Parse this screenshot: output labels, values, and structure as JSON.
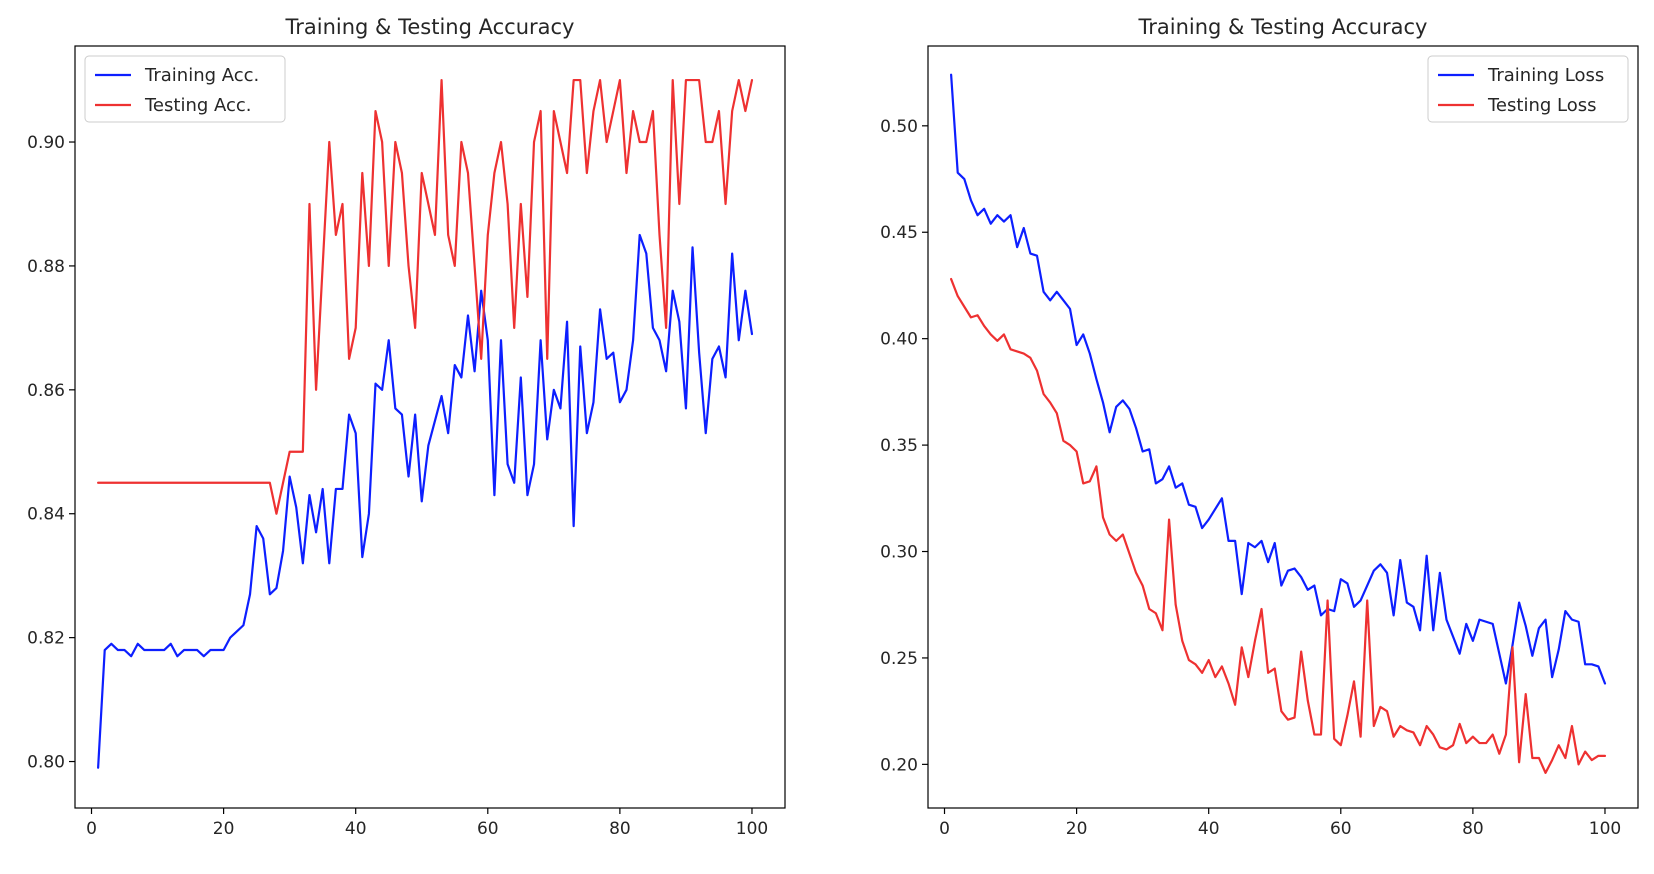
{
  "chart_data": [
    {
      "type": "line",
      "title": "Training & Testing Accuracy",
      "xlabel": "",
      "ylabel": "",
      "xlim": [
        -2.5,
        105
      ],
      "ylim": [
        0.7925,
        0.9155
      ],
      "xticks": [
        0,
        20,
        40,
        60,
        80,
        100
      ],
      "yticks": [
        0.8,
        0.82,
        0.84,
        0.86,
        0.88,
        0.9
      ],
      "ytick_labels": [
        "0.80",
        "0.82",
        "0.84",
        "0.86",
        "0.88",
        "0.90"
      ],
      "legend": "upper-left",
      "grid": false,
      "x": [
        1,
        2,
        3,
        4,
        5,
        6,
        7,
        8,
        9,
        10,
        11,
        12,
        13,
        14,
        15,
        16,
        17,
        18,
        19,
        20,
        21,
        22,
        23,
        24,
        25,
        26,
        27,
        28,
        29,
        30,
        31,
        32,
        33,
        34,
        35,
        36,
        37,
        38,
        39,
        40,
        41,
        42,
        43,
        44,
        45,
        46,
        47,
        48,
        49,
        50,
        51,
        52,
        53,
        54,
        55,
        56,
        57,
        58,
        59,
        60,
        61,
        62,
        63,
        64,
        65,
        66,
        67,
        68,
        69,
        70,
        71,
        72,
        73,
        74,
        75,
        76,
        77,
        78,
        79,
        80,
        81,
        82,
        83,
        84,
        85,
        86,
        87,
        88,
        89,
        90,
        91,
        92,
        93,
        94,
        95,
        96,
        97,
        98,
        99,
        100
      ],
      "series": [
        {
          "name": "Training Acc.",
          "color": "#0d1fff",
          "values": [
            0.799,
            0.818,
            0.819,
            0.818,
            0.818,
            0.817,
            0.819,
            0.818,
            0.818,
            0.818,
            0.818,
            0.819,
            0.817,
            0.818,
            0.818,
            0.818,
            0.817,
            0.818,
            0.818,
            0.818,
            0.82,
            0.821,
            0.822,
            0.827,
            0.838,
            0.836,
            0.827,
            0.828,
            0.834,
            0.846,
            0.841,
            0.832,
            0.843,
            0.837,
            0.844,
            0.832,
            0.844,
            0.844,
            0.856,
            0.853,
            0.833,
            0.84,
            0.861,
            0.86,
            0.868,
            0.857,
            0.856,
            0.846,
            0.856,
            0.842,
            0.851,
            0.855,
            0.859,
            0.853,
            0.864,
            0.862,
            0.872,
            0.863,
            0.876,
            0.868,
            0.843,
            0.868,
            0.848,
            0.845,
            0.862,
            0.843,
            0.848,
            0.868,
            0.852,
            0.86,
            0.857,
            0.871,
            0.838,
            0.867,
            0.853,
            0.858,
            0.873,
            0.865,
            0.866,
            0.858,
            0.86,
            0.868,
            0.885,
            0.882,
            0.87,
            0.868,
            0.863,
            0.876,
            0.871,
            0.857,
            0.883,
            0.866,
            0.853,
            0.865,
            0.867,
            0.862,
            0.882,
            0.868,
            0.876,
            0.869
          ]
        },
        {
          "name": "Testing Acc.",
          "color": "#ee3131",
          "values": [
            0.845,
            0.845,
            0.845,
            0.845,
            0.845,
            0.845,
            0.845,
            0.845,
            0.845,
            0.845,
            0.845,
            0.845,
            0.845,
            0.845,
            0.845,
            0.845,
            0.845,
            0.845,
            0.845,
            0.845,
            0.845,
            0.845,
            0.845,
            0.845,
            0.845,
            0.845,
            0.845,
            0.84,
            0.845,
            0.85,
            0.85,
            0.85,
            0.89,
            0.86,
            0.88,
            0.9,
            0.885,
            0.89,
            0.865,
            0.87,
            0.895,
            0.88,
            0.905,
            0.9,
            0.88,
            0.9,
            0.895,
            0.88,
            0.87,
            0.895,
            0.89,
            0.885,
            0.91,
            0.885,
            0.88,
            0.9,
            0.895,
            0.88,
            0.865,
            0.885,
            0.895,
            0.9,
            0.89,
            0.87,
            0.89,
            0.875,
            0.9,
            0.905,
            0.865,
            0.905,
            0.9,
            0.895,
            0.91,
            0.91,
            0.895,
            0.905,
            0.91,
            0.9,
            0.905,
            0.91,
            0.895,
            0.905,
            0.9,
            0.9,
            0.905,
            0.885,
            0.87,
            0.91,
            0.89,
            0.91,
            0.91,
            0.91,
            0.9,
            0.9,
            0.905,
            0.89,
            0.905,
            0.91,
            0.905,
            0.91
          ]
        }
      ]
    },
    {
      "type": "line",
      "title": "Training & Testing Accuracy",
      "xlabel": "",
      "ylabel": "",
      "xlim": [
        -2.5,
        105
      ],
      "ylim": [
        0.1795,
        0.5375
      ],
      "xticks": [
        0,
        20,
        40,
        60,
        80,
        100
      ],
      "yticks": [
        0.2,
        0.25,
        0.3,
        0.35,
        0.4,
        0.45,
        0.5
      ],
      "ytick_labels": [
        "0.20",
        "0.25",
        "0.30",
        "0.35",
        "0.40",
        "0.45",
        "0.50"
      ],
      "legend": "upper-right",
      "grid": false,
      "x": [
        1,
        2,
        3,
        4,
        5,
        6,
        7,
        8,
        9,
        10,
        11,
        12,
        13,
        14,
        15,
        16,
        17,
        18,
        19,
        20,
        21,
        22,
        23,
        24,
        25,
        26,
        27,
        28,
        29,
        30,
        31,
        32,
        33,
        34,
        35,
        36,
        37,
        38,
        39,
        40,
        41,
        42,
        43,
        44,
        45,
        46,
        47,
        48,
        49,
        50,
        51,
        52,
        53,
        54,
        55,
        56,
        57,
        58,
        59,
        60,
        61,
        62,
        63,
        64,
        65,
        66,
        67,
        68,
        69,
        70,
        71,
        72,
        73,
        74,
        75,
        76,
        77,
        78,
        79,
        80,
        81,
        82,
        83,
        84,
        85,
        86,
        87,
        88,
        89,
        90,
        91,
        92,
        93,
        94,
        95,
        96,
        97,
        98,
        99,
        100
      ],
      "series": [
        {
          "name": "Training Loss",
          "color": "#0d1fff",
          "values": [
            0.524,
            0.478,
            0.475,
            0.465,
            0.458,
            0.461,
            0.454,
            0.458,
            0.455,
            0.458,
            0.443,
            0.452,
            0.44,
            0.439,
            0.422,
            0.418,
            0.422,
            0.418,
            0.414,
            0.397,
            0.402,
            0.393,
            0.381,
            0.37,
            0.356,
            0.368,
            0.371,
            0.367,
            0.358,
            0.347,
            0.348,
            0.332,
            0.334,
            0.34,
            0.33,
            0.332,
            0.322,
            0.321,
            0.311,
            0.315,
            0.32,
            0.325,
            0.305,
            0.305,
            0.28,
            0.304,
            0.302,
            0.305,
            0.295,
            0.304,
            0.284,
            0.291,
            0.292,
            0.288,
            0.282,
            0.284,
            0.27,
            0.273,
            0.272,
            0.287,
            0.285,
            0.274,
            0.277,
            0.284,
            0.291,
            0.294,
            0.29,
            0.27,
            0.296,
            0.276,
            0.274,
            0.263,
            0.298,
            0.263,
            0.29,
            0.268,
            0.26,
            0.252,
            0.266,
            0.258,
            0.268,
            0.267,
            0.266,
            0.252,
            0.238,
            0.256,
            0.276,
            0.265,
            0.251,
            0.264,
            0.268,
            0.241,
            0.254,
            0.272,
            0.268,
            0.267,
            0.247,
            0.247,
            0.246,
            0.238
          ]
        },
        {
          "name": "Testing Loss",
          "color": "#ee3131",
          "values": [
            0.428,
            0.42,
            0.415,
            0.41,
            0.411,
            0.406,
            0.402,
            0.399,
            0.402,
            0.395,
            0.394,
            0.393,
            0.391,
            0.385,
            0.374,
            0.37,
            0.365,
            0.352,
            0.35,
            0.347,
            0.332,
            0.333,
            0.34,
            0.316,
            0.308,
            0.305,
            0.308,
            0.299,
            0.29,
            0.284,
            0.273,
            0.271,
            0.263,
            0.315,
            0.275,
            0.258,
            0.249,
            0.247,
            0.243,
            0.249,
            0.241,
            0.246,
            0.238,
            0.228,
            0.255,
            0.241,
            0.258,
            0.273,
            0.243,
            0.245,
            0.225,
            0.221,
            0.222,
            0.253,
            0.23,
            0.214,
            0.214,
            0.277,
            0.212,
            0.209,
            0.223,
            0.239,
            0.213,
            0.277,
            0.218,
            0.227,
            0.225,
            0.213,
            0.218,
            0.216,
            0.215,
            0.209,
            0.218,
            0.214,
            0.208,
            0.207,
            0.209,
            0.219,
            0.21,
            0.213,
            0.21,
            0.21,
            0.214,
            0.205,
            0.214,
            0.255,
            0.201,
            0.233,
            0.203,
            0.203,
            0.196,
            0.202,
            0.209,
            0.203,
            0.218,
            0.2,
            0.206,
            0.202,
            0.204,
            0.204
          ]
        }
      ]
    }
  ]
}
